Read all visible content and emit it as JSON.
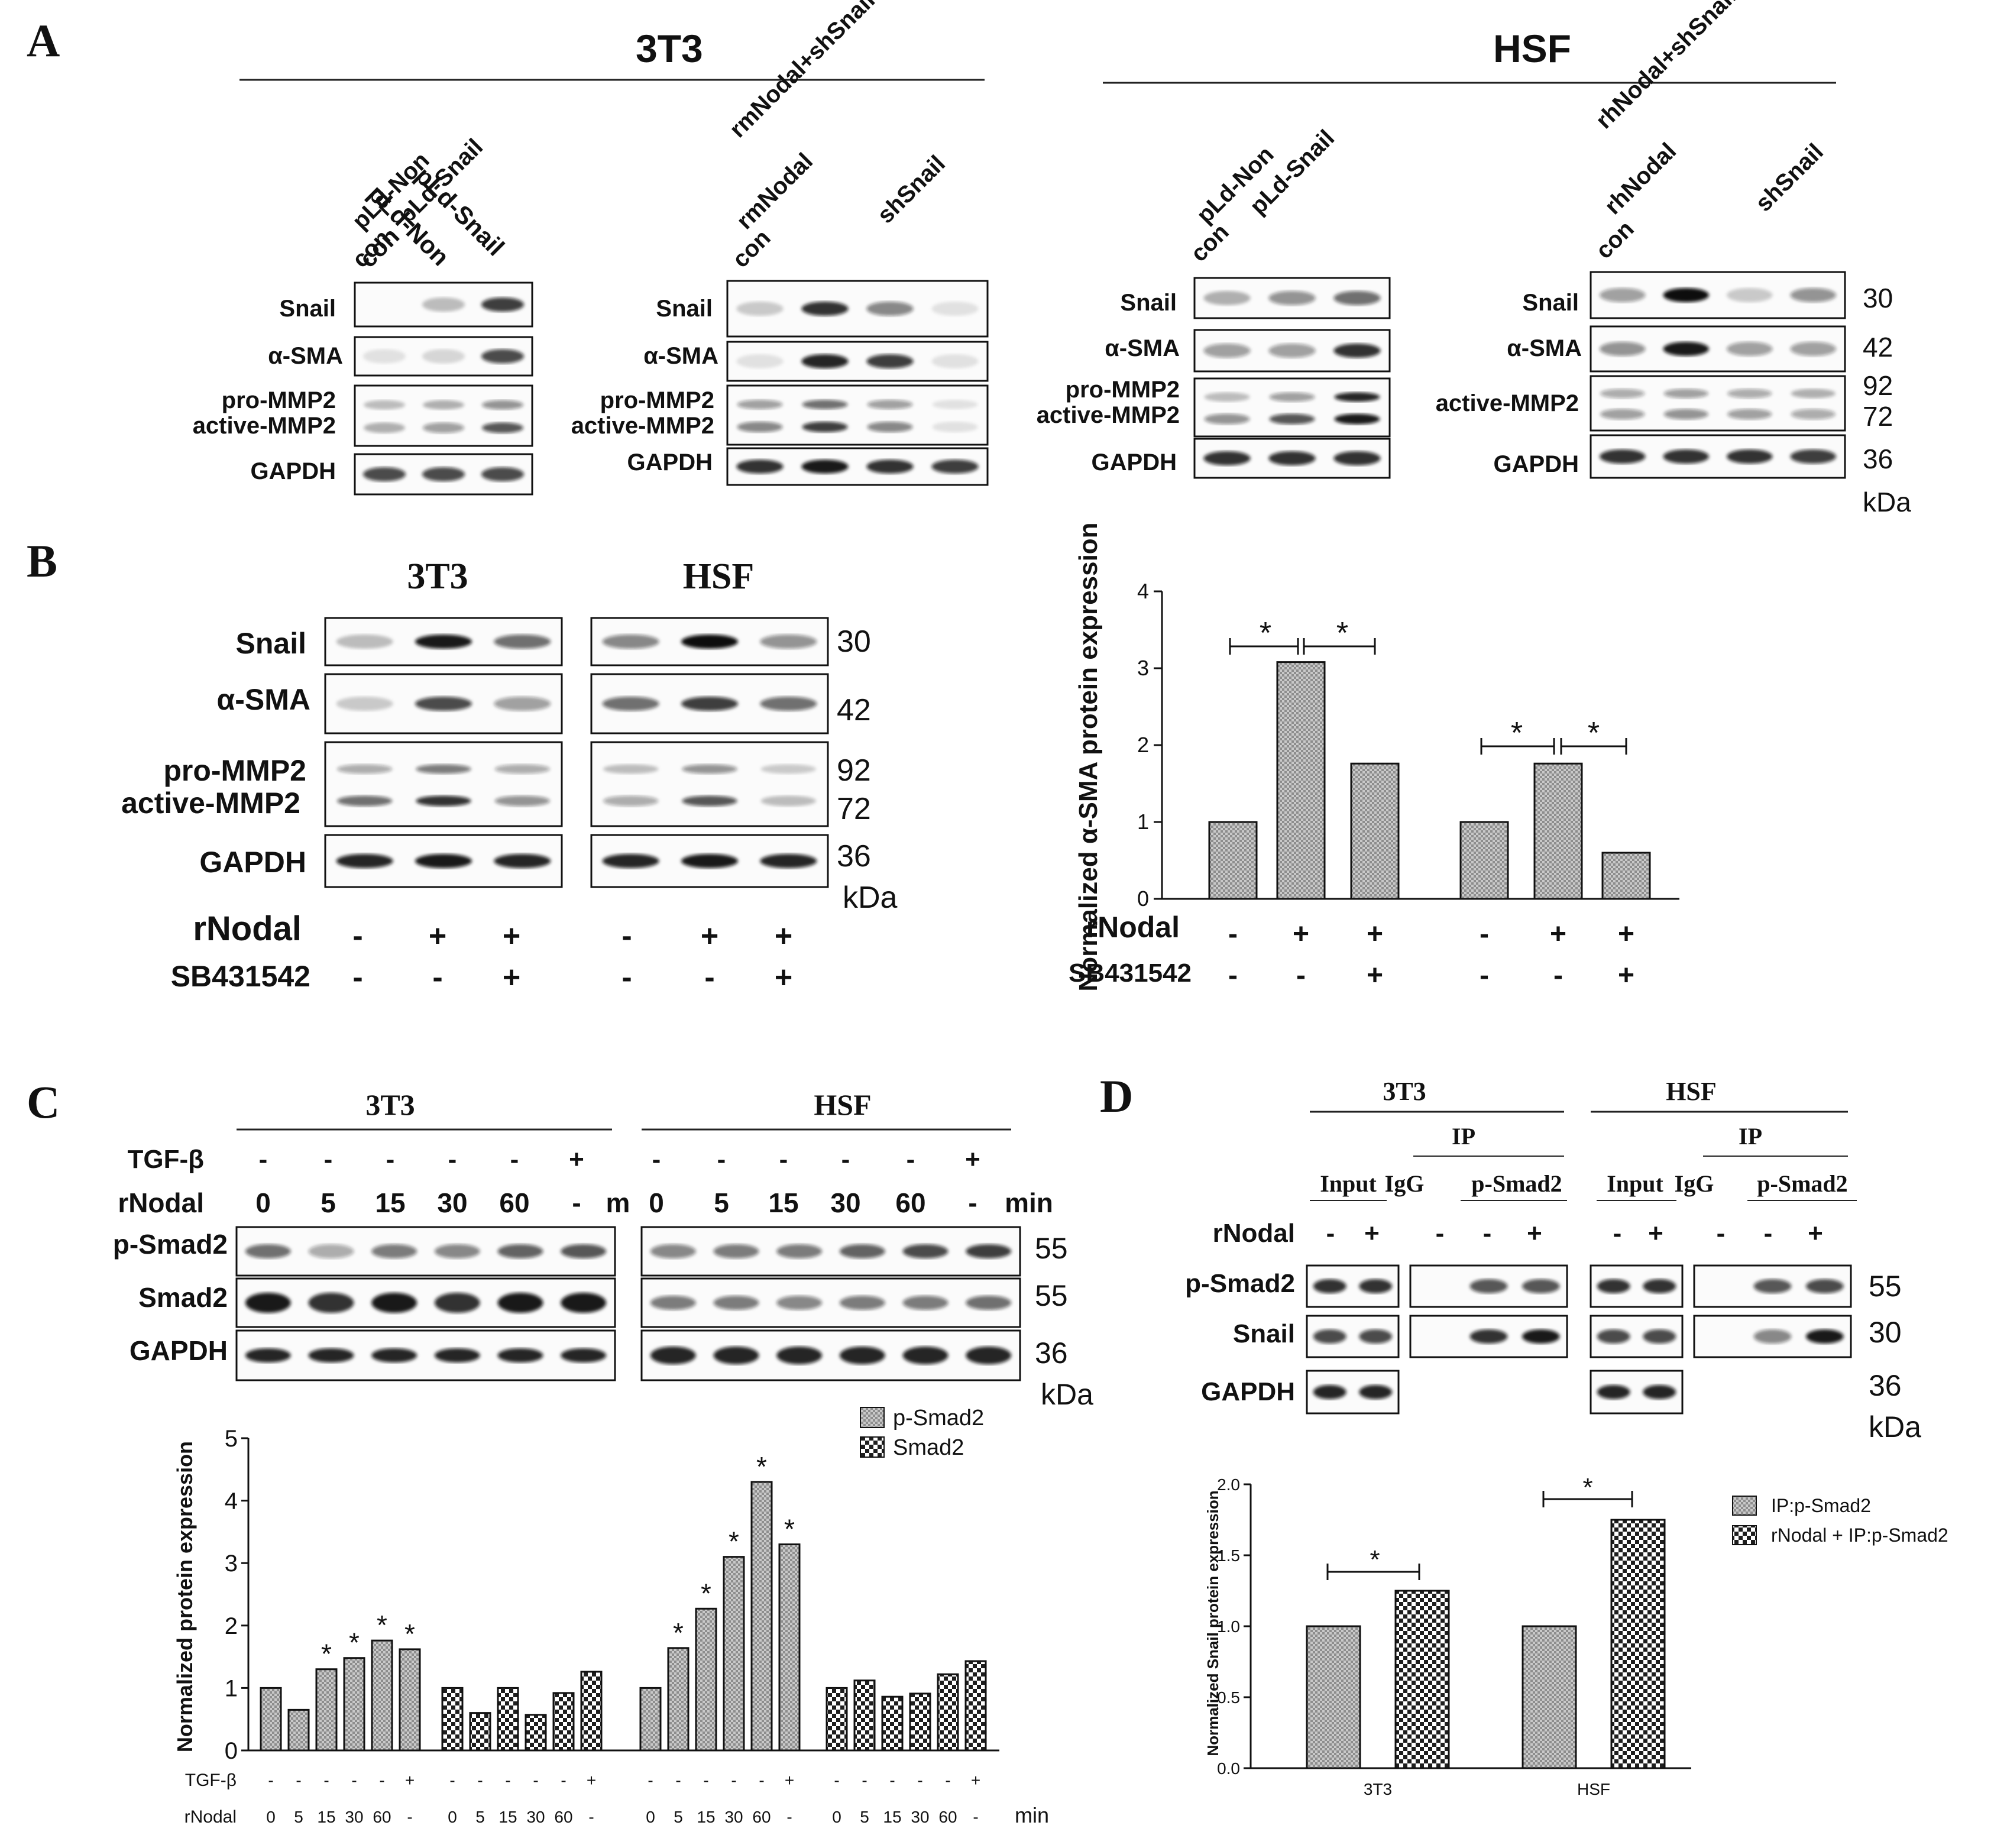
{
  "panels": {
    "A": {
      "letter": "A",
      "group_3t3": "3T3",
      "group_hsf": "HSF",
      "blot1": {
        "lanes": [
          "con",
          "pLd-Non",
          "pLd-Snail"
        ],
        "rows": [
          "Snail",
          "α-SMA",
          "pro-MMP2",
          "active-MMP2",
          "GAPDH"
        ]
      },
      "blot2": {
        "lanes": [
          "con",
          "rmNodal",
          "rmNodal+shSnail",
          "shSnail"
        ],
        "rows": [
          "Snail",
          "α-SMA",
          "pro-MMP2",
          "active-MMP2",
          "GAPDH"
        ]
      },
      "blot3": {
        "lanes": [
          "con",
          "pLd-Non",
          "pLd-Snail"
        ],
        "rows": [
          "Snail",
          "α-SMA",
          "pro-MMP2",
          "active-MMP2",
          "GAPDH"
        ]
      },
      "blot4": {
        "lanes": [
          "con",
          "rhNodal",
          "rhNodal+shSnail",
          "shSnail"
        ],
        "rows": [
          "Snail",
          "α-SMA",
          "active-MMP2",
          "GAPDH"
        ]
      },
      "kda": [
        "30",
        "42",
        "92",
        "72",
        "36",
        "kDa"
      ]
    },
    "B": {
      "letter": "B",
      "title_3t3": "3T3",
      "title_hsf": "HSF",
      "rows": [
        "Snail",
        "α-SMA",
        "pro-MMP2",
        "active-MMP2",
        "GAPDH"
      ],
      "kda": [
        "30",
        "42",
        "92",
        "72",
        "36",
        "kDa"
      ],
      "treat1": {
        "label": "rNodal",
        "vals": [
          "-",
          "+",
          "+",
          "-",
          "+",
          "+"
        ]
      },
      "treat2": {
        "label": "SB431542",
        "vals": [
          "-",
          "-",
          "+",
          "-",
          "-",
          "+"
        ]
      },
      "chart_treat1": {
        "label": "rNodal",
        "vals": [
          "-",
          "+",
          "+",
          "-",
          "+",
          "+"
        ]
      },
      "chart_treat2": {
        "label": "SB431542",
        "vals": [
          "-",
          "-",
          "+",
          "-",
          "-",
          "+"
        ]
      }
    },
    "C": {
      "letter": "C",
      "group_3t3": "3T3",
      "group_hsf": "HSF",
      "tgf_label": "TGF-β",
      "rnodal_label": "rNodal",
      "tgf_vals": [
        "-",
        "-",
        "-",
        "-",
        "-",
        "+"
      ],
      "rnodal_vals": [
        "0",
        "5",
        "15",
        "30",
        "60",
        "-"
      ],
      "unit_left": "m",
      "unit_right": "min",
      "rows": [
        "p-Smad2",
        "Smad2",
        "GAPDH"
      ],
      "kda": [
        "55",
        "55",
        "36",
        "kDa"
      ],
      "axis_tgf": "TGF-β",
      "axis_rnodal": "rNodal",
      "axis_unit": "min"
    },
    "D": {
      "letter": "D",
      "group_3t3": "3T3",
      "group_hsf": "HSF",
      "ip": "IP",
      "input": "Input",
      "igg": "IgG",
      "psmad": "p-Smad2",
      "rnodal_label": "rNodal",
      "rnodal_vals": [
        "-",
        "+",
        "-",
        "-",
        "+"
      ],
      "rows": [
        "p-Smad2",
        "Snail",
        "GAPDH"
      ],
      "kda": [
        "55",
        "30",
        "36",
        "kDa"
      ]
    }
  },
  "chart_data": [
    {
      "type": "bar",
      "panel": "B",
      "ylabel": "Normalized α-SMA protein expression",
      "ylim": [
        0,
        4
      ],
      "yticks": [
        "0",
        "1",
        "2",
        "3",
        "4"
      ],
      "values": [
        1.0,
        3.08,
        1.76,
        1.0,
        1.76,
        0.6
      ],
      "groups": [
        "3T3",
        "HSF"
      ],
      "significance": [
        "*",
        "*",
        "*",
        "*"
      ],
      "grid": false
    },
    {
      "type": "bar",
      "panel": "C",
      "ylabel": "Normalized protein expression",
      "ylim": [
        0,
        5
      ],
      "yticks": [
        "0",
        "1",
        "2",
        "3",
        "4",
        "5"
      ],
      "series": [
        {
          "name": "p-Smad2",
          "values": [
            1.0,
            0.65,
            1.3,
            1.48,
            1.76,
            1.62
          ]
        },
        {
          "name": "Smad2",
          "values": [
            1.0,
            0.6,
            1.0,
            0.57,
            0.92,
            1.26
          ]
        },
        {
          "name": "p-Smad2",
          "values": [
            1.0,
            1.64,
            2.27,
            3.1,
            4.3,
            3.3
          ]
        },
        {
          "name": "Smad2",
          "values": [
            1.0,
            1.12,
            0.86,
            0.91,
            1.22,
            1.43
          ]
        }
      ],
      "legend": [
        "p-Smad2",
        "Smad2"
      ],
      "legend_position": "top-right",
      "significance": [
        "*"
      ],
      "grid": false
    },
    {
      "type": "bar",
      "panel": "D",
      "ylabel": "Normalized Snail protein expression",
      "ylim": [
        0,
        2.0
      ],
      "yticks": [
        "0.0",
        "0.5",
        "1.0",
        "1.5",
        "2.0"
      ],
      "categories": [
        "3T3",
        "HSF"
      ],
      "series": [
        {
          "name": "IP:p-Smad2",
          "values": [
            1.0,
            1.0
          ]
        },
        {
          "name": "rNodal + IP:p-Smad2",
          "values": [
            1.25,
            1.75
          ]
        }
      ],
      "legend_position": "top-right",
      "significance": [
        "*"
      ],
      "grid": false
    }
  ]
}
